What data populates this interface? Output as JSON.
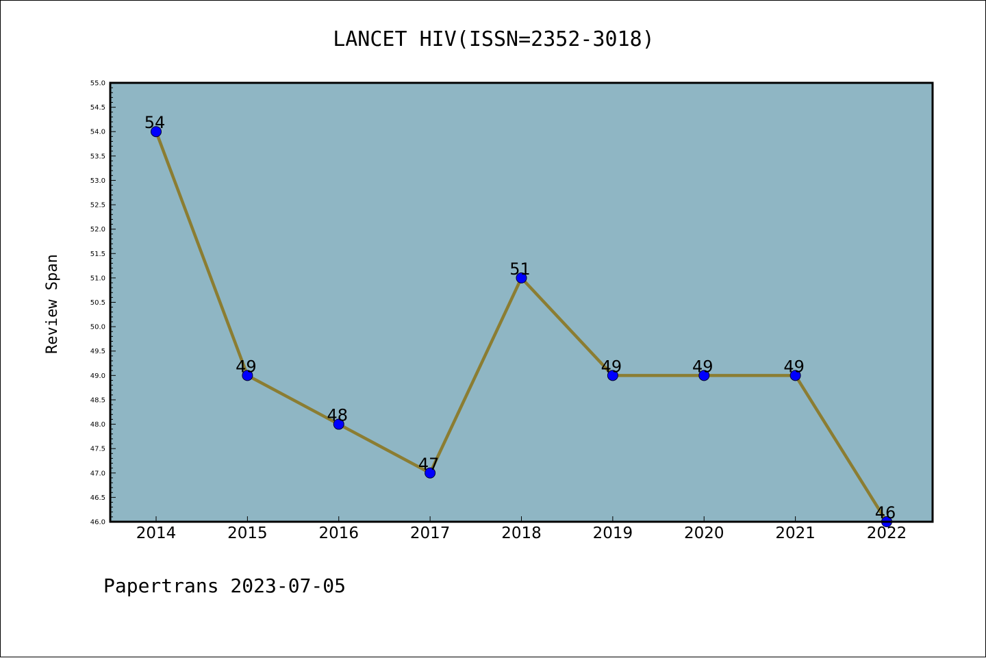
{
  "chart_data": {
    "type": "line",
    "title": "LANCET HIV(ISSN=2352-3018)",
    "xlabel": "",
    "ylabel": "Review Span",
    "categories": [
      "2014",
      "2015",
      "2016",
      "2017",
      "2018",
      "2019",
      "2020",
      "2021",
      "2022"
    ],
    "values": [
      54,
      49,
      48,
      47,
      51,
      49,
      49,
      49,
      46
    ],
    "data_labels": [
      "54",
      "49",
      "48",
      "47",
      "51",
      "49",
      "49",
      "49",
      "46"
    ],
    "ylim": [
      46.0,
      55.0
    ],
    "yticks": [
      "46.0",
      "46.5",
      "47.0",
      "47.5",
      "48.0",
      "48.5",
      "49.0",
      "49.5",
      "50.0",
      "50.5",
      "51.0",
      "51.5",
      "52.0",
      "52.5",
      "53.0",
      "53.5",
      "54.0",
      "54.5",
      "55.0"
    ],
    "grid": false,
    "colors": {
      "plot_background": "#8fb6c4",
      "line": "#8b7d32",
      "marker": "#0000ff"
    }
  },
  "footer": "Papertrans 2023-07-05"
}
